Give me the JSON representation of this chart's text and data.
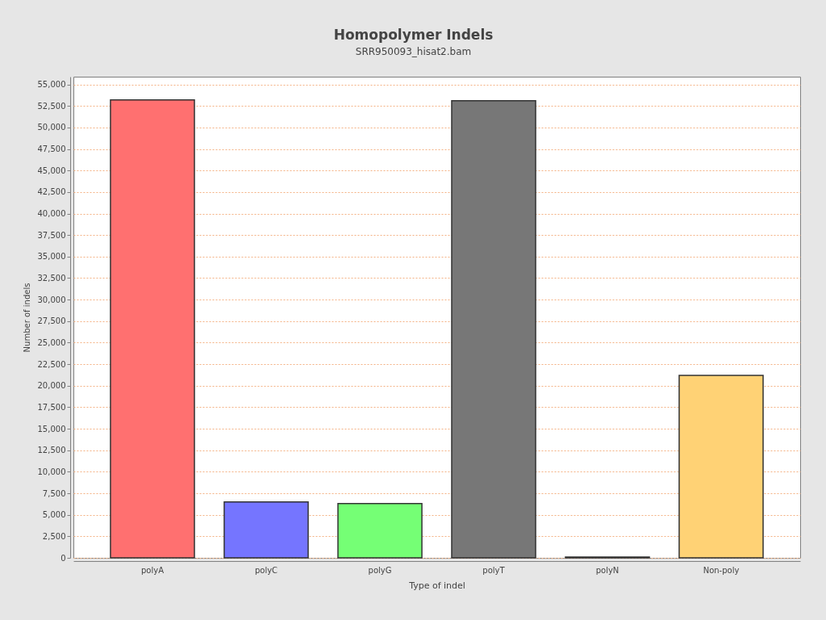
{
  "chart_data": {
    "type": "bar",
    "title": "Homopolymer Indels",
    "subtitle": "SRR950093_hisat2.bam",
    "xlabel": "Type of indel",
    "ylabel": "Number of indels",
    "categories": [
      "polyA",
      "polyC",
      "polyG",
      "polyT",
      "polyN",
      "Non-poly"
    ],
    "values": [
      53200,
      6500,
      6300,
      53100,
      100,
      21200
    ],
    "colors": [
      "#ff7070",
      "#7575ff",
      "#75ff75",
      "#777777",
      "#808080",
      "#ffd275"
    ],
    "ylim": [
      0,
      55900
    ],
    "yticks": [
      {
        "value": 0,
        "label": "0"
      },
      {
        "value": 2500,
        "label": "2,500"
      },
      {
        "value": 5000,
        "label": "5,000"
      },
      {
        "value": 7500,
        "label": "7,500"
      },
      {
        "value": 10000,
        "label": "10,000"
      },
      {
        "value": 12500,
        "label": "12,500"
      },
      {
        "value": 15000,
        "label": "15,000"
      },
      {
        "value": 17500,
        "label": "17,500"
      },
      {
        "value": 20000,
        "label": "20,000"
      },
      {
        "value": 22500,
        "label": "22,500"
      },
      {
        "value": 25000,
        "label": "25,000"
      },
      {
        "value": 27500,
        "label": "27,500"
      },
      {
        "value": 30000,
        "label": "30,000"
      },
      {
        "value": 32500,
        "label": "32,500"
      },
      {
        "value": 35000,
        "label": "35,000"
      },
      {
        "value": 37500,
        "label": "37,500"
      },
      {
        "value": 40000,
        "label": "40,000"
      },
      {
        "value": 42500,
        "label": "42,500"
      },
      {
        "value": 45000,
        "label": "45,000"
      },
      {
        "value": 47500,
        "label": "47,500"
      },
      {
        "value": 50000,
        "label": "50,000"
      },
      {
        "value": 52500,
        "label": "52,500"
      },
      {
        "value": 55000,
        "label": "55,000"
      }
    ],
    "grid": "y",
    "legend": false
  }
}
